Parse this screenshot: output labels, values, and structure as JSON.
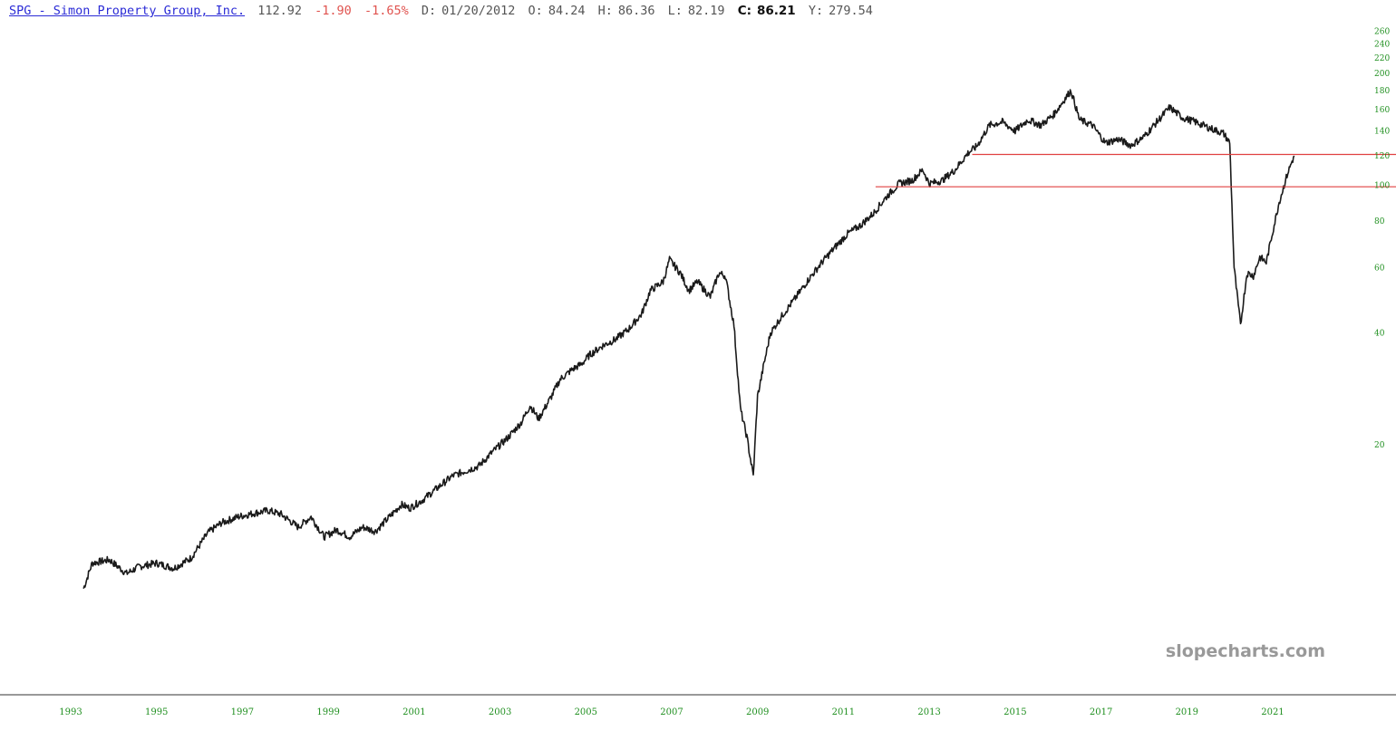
{
  "header": {
    "name": "SPG - Simon Property Group, Inc.",
    "last": "112.92",
    "change": "-1.90",
    "change_pct": "-1.65%",
    "date_label": "D:",
    "date": "01/20/2012",
    "open_label": "O:",
    "open": "84.24",
    "high_label": "H:",
    "high": "86.36",
    "low_label": "L:",
    "low": "82.19",
    "close_label": "C:",
    "close": "86.21",
    "y_label": "Y:",
    "y": "279.54"
  },
  "watermark": "slopecharts.com",
  "colors": {
    "price_line": "#1a1a1a",
    "tick_labels": "#1f8f1f",
    "resistance_line": "#e04040",
    "link": "#2b2bd6",
    "negative": "#e0534f",
    "watermark": "#999999"
  },
  "chart_data": {
    "type": "line",
    "scale": "log",
    "ylim": [
      8,
      270
    ],
    "xlim": [
      1992.5,
      2023.1
    ],
    "y_ticks": [
      20,
      40,
      60,
      80,
      100,
      120,
      140,
      160,
      180,
      200,
      220,
      240,
      260
    ],
    "x_ticks": [
      "1993",
      "1995",
      "1997",
      "1999",
      "2001",
      "2003",
      "2005",
      "2007",
      "2009",
      "2011",
      "2013",
      "2015",
      "2017",
      "2019",
      "2021"
    ],
    "x_tick_values": [
      1993,
      1995,
      1997,
      1999,
      2001,
      2003,
      2005,
      2007,
      2009,
      2011,
      2013,
      2015,
      2017,
      2019,
      2021
    ],
    "series": [
      {
        "x": [
          1993.3,
          1993.5,
          1993.9,
          1994.3,
          1994.6,
          1995.0,
          1995.4,
          1995.8,
          1996.2,
          1996.5,
          1996.9,
          1997.3,
          1997.6,
          1997.9,
          1998.3,
          1998.6,
          1998.9,
          1999.2,
          1999.5,
          1999.8,
          2000.1,
          2000.4,
          2000.7,
          2000.9,
          2001.2,
          2001.6,
          2001.9,
          2002.2,
          2002.5,
          2002.8,
          2003.2,
          2003.5,
          2003.7,
          2003.9,
          2004.2,
          2004.4,
          2004.7,
          2004.9,
          2005.1,
          2005.4,
          2005.7,
          2006.0,
          2006.3,
          2006.5,
          2006.8,
          2006.95,
          2007.2,
          2007.4,
          2007.6,
          2007.9,
          2008.1,
          2008.25,
          2008.45,
          2008.6,
          2008.75,
          2008.9,
          2009.0,
          2009.15,
          2009.3,
          2009.6,
          2009.9,
          2010.2,
          2010.5,
          2010.8,
          2011.1,
          2011.4,
          2011.7,
          2012.0,
          2012.3,
          2012.6,
          2012.85,
          2013.0,
          2013.3,
          2013.6,
          2013.9,
          2014.1,
          2014.4,
          2014.7,
          2015.0,
          2015.3,
          2015.6,
          2015.9,
          2016.3,
          2016.5,
          2016.8,
          2017.1,
          2017.4,
          2017.7,
          2018.0,
          2018.3,
          2018.6,
          2018.9,
          2019.2,
          2019.5,
          2019.85,
          2020.0,
          2020.1,
          2020.25,
          2020.4,
          2020.55,
          2020.7,
          2020.85,
          2021.0,
          2021.15,
          2021.35,
          2021.5
        ],
        "y": [
          8.2,
          9.6,
          9.8,
          9.0,
          9.4,
          9.6,
          9.3,
          9.9,
          11.6,
          12.3,
          12.8,
          13.1,
          13.3,
          13.0,
          12.0,
          12.8,
          11.3,
          11.8,
          11.3,
          12.0,
          11.7,
          12.7,
          13.8,
          13.5,
          14.2,
          15.5,
          16.5,
          17.0,
          17.5,
          19.0,
          21.0,
          23.0,
          25.5,
          23.5,
          27.0,
          30.0,
          32.0,
          33.0,
          35.0,
          37.0,
          38.5,
          41.0,
          45.0,
          52.0,
          55.0,
          63.0,
          58.0,
          52.0,
          55.0,
          50.0,
          58.0,
          57.0,
          42.0,
          25.0,
          21.0,
          16.5,
          27.0,
          33.0,
          40.0,
          45.0,
          50.0,
          56.0,
          62.0,
          68.0,
          74.0,
          78.0,
          84.0,
          93.0,
          101.0,
          103.0,
          110.0,
          101.0,
          103.0,
          110.0,
          122.0,
          127.0,
          145.0,
          148.0,
          140.0,
          150.0,
          145.0,
          155.0,
          180.0,
          150.0,
          145.0,
          130.0,
          133.0,
          128.0,
          135.0,
          148.0,
          162.0,
          152.0,
          148.0,
          143.0,
          138.0,
          130.0,
          60.0,
          42.0,
          58.0,
          57.0,
          64.0,
          62.0,
          75.0,
          90.0,
          108.0,
          120.0
        ]
      }
    ],
    "horizontal_lines": [
      {
        "y": 121,
        "x_from": 2014.0
      },
      {
        "y": 99,
        "x_from": 2011.75
      }
    ],
    "grid": false,
    "legend": "none"
  }
}
